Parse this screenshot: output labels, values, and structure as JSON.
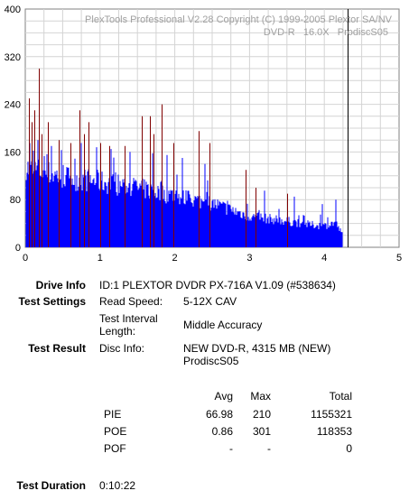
{
  "chart_data": {
    "type": "bar",
    "watermark_line1": "PlexTools Professional V2.28 Copyright (C) 1999-2005 Plextor SA/NV",
    "watermark_line2": "DVD-R   16.0X   ProdiscS05",
    "xlim": [
      0,
      5
    ],
    "ylim": [
      0,
      400
    ],
    "xticks": [
      "0",
      "1",
      "2",
      "3",
      "4",
      "5"
    ],
    "yticks": [
      "0",
      "80",
      "160",
      "240",
      "320",
      "400"
    ],
    "grid": true,
    "data_end": 4.24,
    "end_marker_x": 4.31,
    "series": [
      {
        "color": "#0000ff",
        "profile": [
          [
            0.0,
            140
          ],
          [
            0.05,
            130
          ],
          [
            0.2,
            128
          ],
          [
            0.5,
            118
          ],
          [
            1.0,
            110
          ],
          [
            1.5,
            100
          ],
          [
            2.0,
            86
          ],
          [
            2.5,
            74
          ],
          [
            3.0,
            52
          ],
          [
            3.5,
            44
          ],
          [
            3.8,
            38
          ],
          [
            4.0,
            36
          ],
          [
            4.15,
            42
          ],
          [
            4.24,
            22
          ]
        ],
        "spikes": [
          [
            0.06,
            175
          ],
          [
            0.17,
            180
          ],
          [
            0.35,
            170
          ],
          [
            0.55,
            165
          ],
          [
            0.75,
            175
          ],
          [
            0.95,
            168
          ],
          [
            1.15,
            165
          ],
          [
            1.4,
            160
          ],
          [
            1.7,
            158
          ],
          [
            1.9,
            155
          ],
          [
            2.1,
            150
          ],
          [
            2.4,
            140
          ],
          [
            2.7,
            120
          ],
          [
            3.2,
            95
          ],
          [
            3.6,
            85
          ],
          [
            4.15,
            80
          ]
        ]
      },
      {
        "color": "#800000",
        "spikes": [
          [
            0.05,
            250
          ],
          [
            0.09,
            210
          ],
          [
            0.12,
            230
          ],
          [
            0.18,
            300
          ],
          [
            0.22,
            190
          ],
          [
            0.3,
            210
          ],
          [
            0.45,
            180
          ],
          [
            0.6,
            175
          ],
          [
            0.73,
            230
          ],
          [
            0.78,
            190
          ],
          [
            0.85,
            210
          ],
          [
            1.0,
            175
          ],
          [
            1.12,
            170
          ],
          [
            1.33,
            170
          ],
          [
            1.56,
            220
          ],
          [
            1.67,
            220
          ],
          [
            1.72,
            190
          ],
          [
            1.82,
            240
          ],
          [
            1.98,
            175
          ],
          [
            2.32,
            195
          ],
          [
            2.46,
            175
          ],
          [
            2.95,
            130
          ],
          [
            3.08,
            100
          ],
          [
            3.5,
            90
          ]
        ]
      }
    ]
  },
  "info": {
    "drive_info_label": "Drive Info",
    "drive_info_value": "ID:1 PLEXTOR DVDR PX-716A V1.09 (#538634)",
    "test_settings_label": "Test Settings",
    "read_speed_label": "Read Speed:",
    "read_speed_value": "5-12X CAV",
    "interval_label_1": "Test Interval",
    "interval_label_2": "Length:",
    "interval_value": "Middle Accuracy",
    "test_result_label": "Test Result",
    "disc_info_label": "Disc Info:",
    "disc_info_value_1": "NEW DVD-R, 4315 MB (NEW)",
    "disc_info_value_2": "ProdiscS05",
    "col_avg": "Avg",
    "col_max": "Max",
    "col_total": "Total",
    "rows": [
      {
        "name": "PIE",
        "avg": "66.98",
        "max": "210",
        "total": "1155321"
      },
      {
        "name": "POE",
        "avg": "0.86",
        "max": "301",
        "total": "118353"
      },
      {
        "name": "POF",
        "avg": "-",
        "max": "-",
        "total": "0"
      }
    ],
    "duration_label": "Test Duration",
    "duration_value": "0:10:22"
  }
}
